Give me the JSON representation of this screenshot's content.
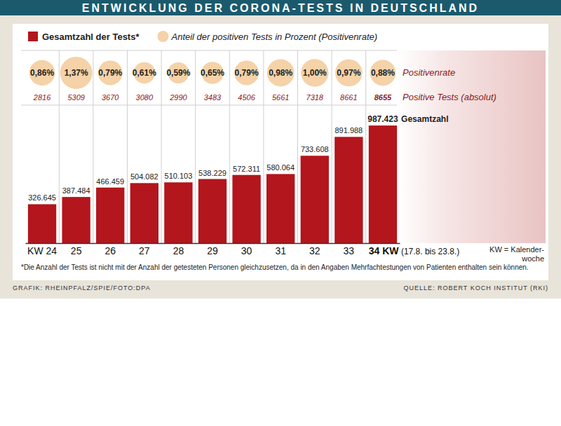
{
  "chart_data": {
    "type": "bar",
    "title": "ENTWICKLUNG DER CORONA-TESTS IN DEUTSCHLAND",
    "categories": [
      "KW 24",
      "25",
      "26",
      "27",
      "28",
      "29",
      "30",
      "31",
      "32",
      "33",
      "34 KW (17.8. bis 23.8.)"
    ],
    "series": [
      {
        "name": "Gesamtzahl der Tests*",
        "type": "bar",
        "color": "#b3161c",
        "values": [
          326645,
          387484,
          466459,
          504082,
          510103,
          538229,
          572311,
          580064,
          733608,
          891988,
          987423
        ],
        "value_labels": [
          "326.645",
          "387.484",
          "466.459",
          "504.082",
          "510.103",
          "538.229",
          "572.311",
          "580.064",
          "733.608",
          "891.988",
          "987.423"
        ]
      },
      {
        "name": "Anteil der positiven Tests in Prozent (Positivenrate)",
        "type": "bubble",
        "color": "#f5d2a8",
        "values": [
          0.86,
          1.37,
          0.79,
          0.61,
          0.59,
          0.65,
          0.79,
          0.98,
          1.0,
          0.97,
          0.88
        ],
        "value_labels": [
          "0,86%",
          "1,37%",
          "0,79%",
          "0,61%",
          "0,59%",
          "0,65%",
          "0,79%",
          "0,98%",
          "1,00%",
          "0,97%",
          "0,88%"
        ]
      }
    ],
    "rate_label": "Positivenrate",
    "positive_tests": {
      "label": "Positive Tests (absolut)",
      "values": [
        2816,
        5309,
        3670,
        3080,
        2990,
        3483,
        4506,
        5661,
        7318,
        8661,
        8655
      ]
    },
    "total_label": "Gesamtzahl",
    "x_note": "KW = Kalender-woche",
    "footnote": "*Die Anzahl der Tests ist nicht mit der Anzahl der getesteten Personen gleichzusetzen, da in den Angaben Mehrfachtestungen von Patienten enthalten sein können.",
    "credit": "GRAFIK: RHEINPFALZ/SPIE/FOTO:DPA",
    "source": "QUELLE: ROBERT KOCH INSTITUT (RKI)",
    "ylim": [
      0,
      1100000
    ],
    "legend": "top",
    "data_labels": true,
    "tick_labels": "x",
    "grid": false
  }
}
